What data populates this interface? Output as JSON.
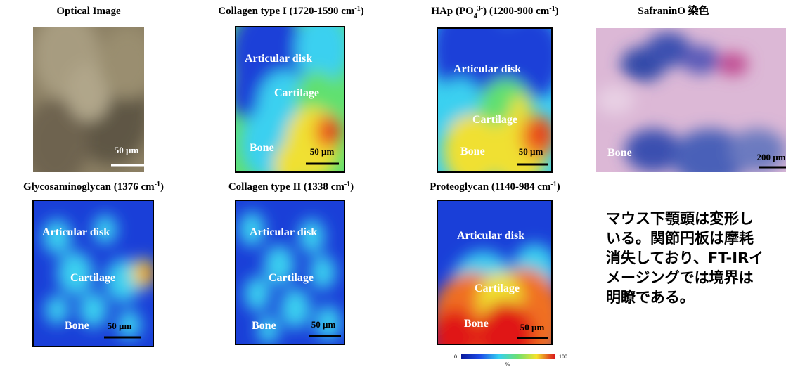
{
  "panels": [
    {
      "title": [
        {
          "text": "Optical Image"
        }
      ],
      "labels": [],
      "scale": "50 µm"
    },
    {
      "title": [
        {
          "text": "Collagen type I (1720-1590 cm"
        },
        {
          "text": "-1",
          "style": "sup"
        },
        {
          "text": ")"
        }
      ],
      "labels": [
        "Articular disk",
        "Cartilage",
        "Bone"
      ],
      "scale": "50 µm"
    },
    {
      "title": [
        {
          "text": "HAp (PO"
        },
        {
          "text": "4",
          "style": "sub"
        },
        {
          "text": "3-",
          "style": "sup"
        },
        {
          "text": ") (1200-900 cm"
        },
        {
          "text": "-1",
          "style": "sup"
        },
        {
          "text": ")"
        }
      ],
      "labels": [
        "Articular disk",
        "Cartilage",
        "Bone"
      ],
      "scale": "50 µm"
    },
    {
      "title": [
        {
          "text": "SafraninO 染色"
        }
      ],
      "labels": [
        "Bone"
      ],
      "scale": "200 µm"
    },
    {
      "title": [
        {
          "text": "Glycosaminoglycan (1376 cm"
        },
        {
          "text": "-1",
          "style": "sup"
        },
        {
          "text": ")"
        }
      ],
      "labels": [
        "Articular disk",
        "Cartilage",
        "Bone"
      ],
      "scale": "50 µm"
    },
    {
      "title": [
        {
          "text": "Collagen type II (1338 cm"
        },
        {
          "text": "-1",
          "style": "sup"
        },
        {
          "text": ")"
        }
      ],
      "labels": [
        "Articular disk",
        "Cartilage",
        "Bone"
      ],
      "scale": "50 µm"
    },
    {
      "title": [
        {
          "text": "Proteoglycan (1140-984 cm"
        },
        {
          "text": "-1",
          "style": "sup"
        },
        {
          "text": ")"
        }
      ],
      "labels": [
        "Articular disk",
        "Cartilage",
        "Bone"
      ],
      "scale": "50 µm"
    }
  ],
  "colorbar": {
    "min": "0",
    "max": "100",
    "unit": "%"
  },
  "caption": [
    "マウス下顎頭は変形し",
    "いる。関節円板は摩耗",
    "消失しており、FT-IRイ",
    "メージングでは境界は",
    "明瞭である。"
  ]
}
